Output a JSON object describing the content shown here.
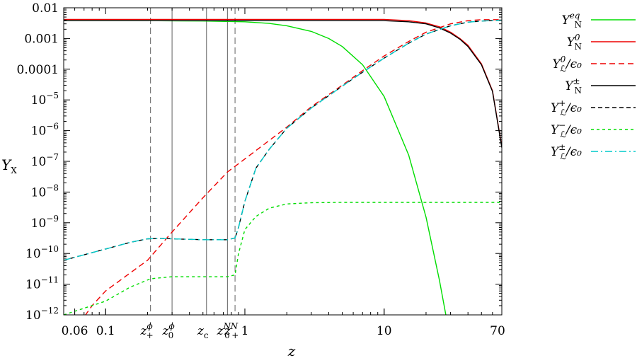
{
  "chart_data": {
    "type": "line",
    "title": "",
    "xlabel": "z",
    "ylabel": "Y_X",
    "xscale": "log",
    "yscale": "log",
    "xlim": [
      0.05,
      70
    ],
    "ylim": [
      1e-12,
      0.01
    ],
    "grid": false,
    "legend_position": "right-outside",
    "x_ticks": [
      {
        "value": 0.06,
        "label": "0.06"
      },
      {
        "value": 0.1,
        "label": "0.1"
      },
      {
        "value": 1,
        "label": "1"
      },
      {
        "value": 10,
        "label": "10"
      },
      {
        "value": 70,
        "label": "70"
      }
    ],
    "y_ticks": [
      {
        "value": 0.01,
        "label": "0.01",
        "base": "",
        "exp": ""
      },
      {
        "value": 0.001,
        "label": "0.001",
        "base": "",
        "exp": ""
      },
      {
        "value": 0.0001,
        "label": "0.0001",
        "base": "",
        "exp": ""
      },
      {
        "value": 1e-05,
        "label": "",
        "base": "10",
        "exp": "−5"
      },
      {
        "value": 1e-06,
        "label": "",
        "base": "10",
        "exp": "−6"
      },
      {
        "value": 1e-07,
        "label": "",
        "base": "10",
        "exp": "−7"
      },
      {
        "value": 1e-08,
        "label": "",
        "base": "10",
        "exp": "−8"
      },
      {
        "value": 1e-09,
        "label": "",
        "base": "10",
        "exp": "−9"
      },
      {
        "value": 1e-10,
        "label": "",
        "base": "10",
        "exp": "−10"
      },
      {
        "value": 1e-11,
        "label": "",
        "base": "10",
        "exp": "−11"
      },
      {
        "value": 1e-12,
        "label": "",
        "base": "10",
        "exp": "−12"
      }
    ],
    "markers": [
      {
        "id": "z_plus_phi",
        "base": "z",
        "sub": "+",
        "sup": "ϕ",
        "x": 0.21,
        "style": "dashed"
      },
      {
        "id": "z_0_phi",
        "base": "z",
        "sub": "0",
        "sup": "ϕ",
        "x": 0.3,
        "style": "solid"
      },
      {
        "id": "z_c",
        "base": "z",
        "sub": "c",
        "sup": "",
        "x": 0.53,
        "style": "solid"
      },
      {
        "id": "z_0_N",
        "base": "z",
        "sub": "0",
        "sup": "N",
        "x": 0.75,
        "style": "solid"
      },
      {
        "id": "z_plus_N",
        "base": "z",
        "sub": "+",
        "sup": "N",
        "x": 0.85,
        "style": "dashed"
      }
    ],
    "series": [
      {
        "id": "YN_eq",
        "legend": {
          "base": "Y",
          "sub": "N",
          "sup": "eq",
          "suffix": ""
        },
        "color": "#00dd00",
        "dash": "",
        "x": [
          0.05,
          0.1,
          0.2,
          0.5,
          1,
          1.5,
          2,
          3,
          4,
          5,
          7,
          10,
          15,
          20,
          25,
          28
        ],
        "y": [
          0.0038,
          0.0038,
          0.0038,
          0.0037,
          0.0035,
          0.0031,
          0.0026,
          0.0017,
          0.001,
          0.00055,
          0.00014,
          1.3e-05,
          1.6e-07,
          1.5e-09,
          1.3e-11,
          8e-13
        ]
      },
      {
        "id": "YN_0",
        "legend": {
          "base": "Y",
          "sub": "N",
          "sup": "0",
          "suffix": ""
        },
        "color": "#ee0000",
        "dash": "",
        "x": [
          0.05,
          0.5,
          1,
          5,
          10,
          15,
          20,
          25,
          30,
          35,
          40,
          50,
          60,
          70
        ],
        "y": [
          0.0042,
          0.0042,
          0.0042,
          0.0042,
          0.0042,
          0.0038,
          0.0032,
          0.0024,
          0.0016,
          0.001,
          0.0006,
          0.00015,
          2e-05,
          3e-07
        ]
      },
      {
        "id": "YL0_eps",
        "legend": {
          "base": "Y",
          "sub": "ℒ",
          "sup": "0",
          "suffix": "/ϵ₀"
        },
        "color": "#ee0000",
        "dash": "8,5",
        "x": [
          0.05,
          0.08,
          0.1,
          0.2,
          0.3,
          0.5,
          0.75,
          1,
          2,
          3,
          5,
          7,
          10,
          15,
          20,
          30,
          40,
          50,
          70
        ],
        "y": [
          1e-13,
          2e-12,
          6e-12,
          6e-11,
          5e-10,
          6.5e-09,
          4.5e-08,
          1.2e-07,
          1.3e-06,
          6e-06,
          3e-05,
          9e-05,
          0.00027,
          0.0008,
          0.0016,
          0.003,
          0.0038,
          0.0041,
          0.0041
        ]
      },
      {
        "id": "YN_pm",
        "legend": {
          "base": "Y",
          "sub": "N",
          "sup": "±",
          "suffix": ""
        },
        "color": "#000000",
        "dash": "",
        "x": [
          0.05,
          0.5,
          1,
          5,
          10,
          15,
          20,
          25,
          30,
          35,
          40,
          50,
          60,
          70
        ],
        "y": [
          0.0038,
          0.0038,
          0.0038,
          0.0038,
          0.0038,
          0.0035,
          0.003,
          0.0022,
          0.0015,
          0.00095,
          0.00055,
          0.00014,
          1.9e-05,
          2.8e-07
        ]
      },
      {
        "id": "YLp_eps",
        "legend": {
          "base": "Y",
          "sub": "ℒ",
          "sup": "+",
          "suffix": "/ϵ₀"
        },
        "color": "#000000",
        "dash": "6,4",
        "x": [
          0.05,
          0.1,
          0.15,
          0.2,
          0.25,
          0.3,
          0.5,
          0.75,
          0.85,
          0.9,
          1,
          1.2,
          1.5,
          2,
          3,
          5,
          7,
          10,
          15,
          20,
          30,
          40,
          50,
          70
        ],
        "y": [
          6e-11,
          1.4e-10,
          2.3e-10,
          3e-10,
          3.1e-10,
          3e-10,
          2.8e-10,
          2.8e-10,
          3.2e-10,
          7e-10,
          5e-09,
          6e-08,
          2.5e-07,
          1.2e-06,
          5.5e-06,
          2.8e-05,
          8e-05,
          0.00023,
          0.0007,
          0.0014,
          0.0026,
          0.0034,
          0.0037,
          0.0039
        ]
      },
      {
        "id": "YLm_eps",
        "legend": {
          "base": "Y",
          "sub": "ℒ",
          "sup": "−",
          "suffix": "/ϵ₀"
        },
        "color": "#00dd00",
        "dash": "4,4",
        "x": [
          0.05,
          0.1,
          0.15,
          0.21,
          0.3,
          0.5,
          0.75,
          0.85,
          0.9,
          1,
          1.2,
          1.5,
          2,
          3,
          5,
          10,
          70
        ],
        "y": [
          1e-12,
          2.8e-12,
          8e-12,
          1.5e-11,
          1.75e-11,
          1.75e-11,
          1.75e-11,
          2e-11,
          1e-10,
          6e-10,
          1.6e-09,
          3e-09,
          4.1e-09,
          4.5e-09,
          4.6e-09,
          4.6e-09,
          4.6e-09
        ]
      },
      {
        "id": "YLpm_eps",
        "legend": {
          "base": "Y",
          "sub": "ℒ",
          "sup": "±",
          "suffix": "/ϵ₀"
        },
        "color": "#00cccc",
        "dash": "10,4,2,4",
        "x": [
          0.05,
          0.1,
          0.15,
          0.2,
          0.25,
          0.3,
          0.5,
          0.75,
          0.85,
          0.9,
          1,
          1.2,
          1.5,
          2,
          3,
          5,
          7,
          10,
          15,
          20,
          30,
          40,
          50,
          70
        ],
        "y": [
          6e-11,
          1.4e-10,
          2.3e-10,
          3e-10,
          3.1e-10,
          3e-10,
          2.8e-10,
          2.8e-10,
          3.2e-10,
          7e-10,
          5e-09,
          6e-08,
          2.5e-07,
          1.2e-06,
          5.5e-06,
          2.8e-05,
          8e-05,
          0.00023,
          0.0007,
          0.0014,
          0.0026,
          0.0034,
          0.0037,
          0.0039
        ]
      }
    ]
  }
}
